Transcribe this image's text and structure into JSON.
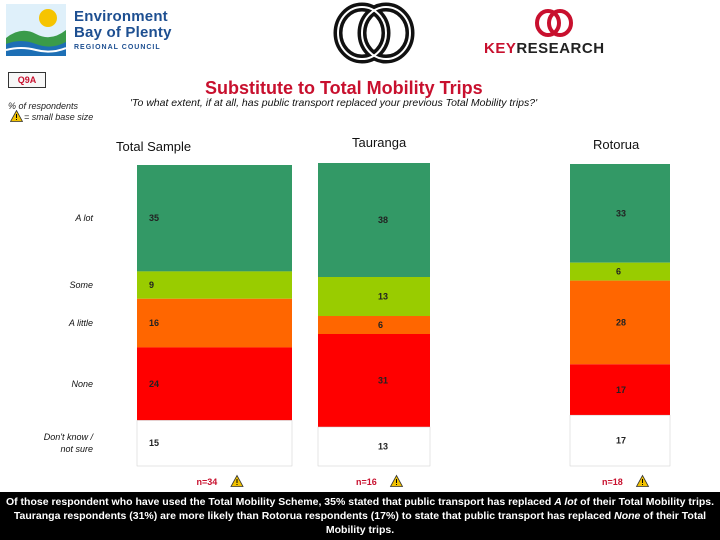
{
  "header": {
    "org_name_line1": "Environment",
    "org_name_line2": "Bay of Plenty",
    "org_name_line3": "REGIONAL COUNCIL",
    "research_brand_key": "KEY",
    "research_brand_rest": "RESEARCH"
  },
  "question_tag": "Q9A",
  "base_note": "% of respondents",
  "small_base_note": "= small base size",
  "title": "Substitute to Total Mobility Trips",
  "subtitle": "'To what extent, if at all, has public transport replaced your previous Total Mobility trips?'",
  "chart_data": {
    "type": "bar",
    "stacked": true,
    "unit": "percent",
    "categories": [
      "Total Sample",
      "Tauranga",
      "Rotorua"
    ],
    "series": [
      {
        "name": "A lot",
        "color": "#339966",
        "values": [
          35,
          38,
          33
        ]
      },
      {
        "name": "Some",
        "color": "#99cc00",
        "values": [
          9,
          13,
          6
        ]
      },
      {
        "name": "A little",
        "color": "#ff6600",
        "values": [
          16,
          6,
          28
        ]
      },
      {
        "name": "None",
        "color": "#ff0000",
        "values": [
          24,
          31,
          17
        ]
      },
      {
        "name": "Don't know / not sure",
        "color": "#ffffff",
        "values": [
          15,
          13,
          17
        ]
      }
    ],
    "base_labels": [
      "n=34",
      "n=16",
      "n=18"
    ],
    "small_base_icon": "warning-triangle-icon"
  },
  "footer": {
    "part1": "Of those respondent who have used the Total Mobility Scheme, 35% stated that public transport has replaced ",
    "italic1": "A lot",
    "part2": " of their Total Mobility trips.  Tauranga respondents (31%) are more likely than Rotorua respondents (17%) to state that public transport has replaced ",
    "italic2": "None",
    "part3": " of their Total Mobility trips."
  }
}
